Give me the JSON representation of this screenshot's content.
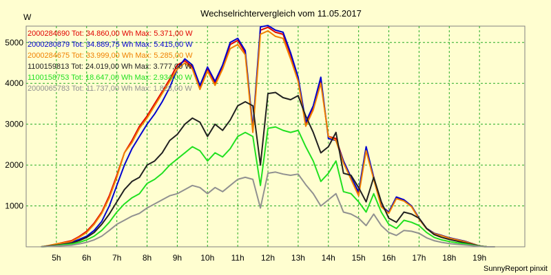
{
  "chart_data": {
    "type": "line",
    "title": "Wechselrichtervergleich vom 11.05.2017",
    "ylabel": "W",
    "xlabel": "",
    "footer": "SunnyReport pinxit",
    "grid": true,
    "legend_position": "top-left",
    "x_unit": "hour",
    "xlim": [
      4.0,
      20.5
    ],
    "ylim": [
      0,
      5400
    ],
    "x_ticks": [
      5,
      6,
      7,
      8,
      9,
      10,
      11,
      12,
      13,
      14,
      15,
      16,
      17,
      18,
      19
    ],
    "x_tick_labels": [
      "5h",
      "6h",
      "7h",
      "8h",
      "9h",
      "10h",
      "11h",
      "12h",
      "13h",
      "14h",
      "15h",
      "16h",
      "17h",
      "18h",
      "19h"
    ],
    "y_ticks": [
      1000,
      2000,
      3000,
      4000,
      5000
    ],
    "y_tick_labels": [
      "1000",
      "2000",
      "3000",
      "4000",
      "5000"
    ],
    "x": [
      4.5,
      4.75,
      5.0,
      5.25,
      5.5,
      5.75,
      6.0,
      6.25,
      6.5,
      6.75,
      7.0,
      7.25,
      7.5,
      7.75,
      8.0,
      8.25,
      8.5,
      8.75,
      9.0,
      9.25,
      9.5,
      9.75,
      10.0,
      10.25,
      10.5,
      10.75,
      11.0,
      11.25,
      11.5,
      11.75,
      12.0,
      12.25,
      12.5,
      12.75,
      13.0,
      13.25,
      13.5,
      13.75,
      14.0,
      14.25,
      14.5,
      14.75,
      15.0,
      15.25,
      15.5,
      15.75,
      16.0,
      16.25,
      16.5,
      16.75,
      17.0,
      17.25,
      17.5,
      17.75,
      18.0,
      18.25,
      18.5,
      18.75,
      19.0,
      19.25,
      19.5
    ],
    "series": [
      {
        "name": "2000284690",
        "label": "2000284690 Tot: 34.860,00 Wh Max: 5.371,00 W",
        "color": "#e00000",
        "values": [
          0,
          30,
          70,
          110,
          150,
          250,
          380,
          580,
          850,
          1250,
          1750,
          2300,
          2600,
          2950,
          3200,
          3500,
          3800,
          4100,
          4450,
          4550,
          4400,
          3900,
          4350,
          4000,
          4400,
          4950,
          5050,
          4750,
          2850,
          5300,
          5371,
          5250,
          5200,
          4700,
          4100,
          3000,
          3400,
          4050,
          2700,
          2650,
          2100,
          1700,
          1300,
          2400,
          1700,
          1000,
          850,
          1200,
          1150,
          1000,
          700,
          450,
          330,
          280,
          220,
          180,
          140,
          80,
          20,
          0,
          0
        ]
      },
      {
        "name": "2000280879",
        "label": "2000280879 Tot: 34.889,75 Wh Max: 5.415,00 W",
        "color": "#0000d0",
        "values": [
          0,
          20,
          50,
          80,
          110,
          180,
          260,
          400,
          620,
          1000,
          1500,
          2000,
          2400,
          2700,
          3000,
          3250,
          3550,
          3900,
          4350,
          4600,
          4450,
          3950,
          4400,
          4050,
          4450,
          5000,
          5100,
          4800,
          2900,
          5380,
          5415,
          5300,
          5250,
          4750,
          4150,
          3050,
          3450,
          4150,
          2650,
          2600,
          2100,
          1700,
          1350,
          2450,
          1700,
          1000,
          850,
          1220,
          1150,
          1000,
          700,
          450,
          330,
          280,
          220,
          180,
          140,
          80,
          20,
          0,
          0
        ]
      },
      {
        "name": "2000284675",
        "label": "2000284675 Tot: 33.999,00 Wh Max: 5.285,00 W",
        "color": "#f08000",
        "values": [
          0,
          30,
          70,
          100,
          130,
          230,
          350,
          550,
          820,
          1200,
          1700,
          2300,
          2550,
          2900,
          3150,
          3450,
          3750,
          4050,
          4350,
          4500,
          4350,
          3850,
          4300,
          3950,
          4350,
          4850,
          4950,
          4700,
          2800,
          5200,
          5285,
          5150,
          5100,
          4600,
          4050,
          2950,
          3350,
          4000,
          2700,
          2600,
          2050,
          1650,
          1250,
          2350,
          1650,
          980,
          820,
          1180,
          1120,
          980,
          680,
          440,
          320,
          270,
          210,
          170,
          130,
          75,
          20,
          0,
          0
        ]
      },
      {
        "name": "1100159813",
        "label": "1100159813 Tot: 24.019,00 Wh Max: 3.777,00 W",
        "color": "#202020",
        "values": [
          0,
          20,
          40,
          60,
          90,
          150,
          230,
          350,
          550,
          800,
          1100,
          1400,
          1600,
          1700,
          2000,
          2100,
          2300,
          2600,
          2750,
          3000,
          3150,
          3050,
          2700,
          3000,
          2850,
          3100,
          3450,
          3550,
          3450,
          2000,
          3750,
          3777,
          3650,
          3600,
          3700,
          3200,
          2800,
          2300,
          2450,
          2800,
          1800,
          1750,
          1450,
          1100,
          1700,
          1100,
          700,
          600,
          850,
          800,
          700,
          450,
          300,
          230,
          180,
          140,
          100,
          60,
          20,
          0,
          0
        ]
      },
      {
        "name": "1100158753",
        "label": "1100158753 Tot: 18.647,00 Wh Max: 2.934,00 W",
        "color": "#20e020",
        "values": [
          0,
          10,
          30,
          50,
          70,
          110,
          170,
          260,
          400,
          600,
          850,
          1050,
          1200,
          1300,
          1550,
          1650,
          1800,
          2000,
          2150,
          2300,
          2450,
          2350,
          2100,
          2300,
          2200,
          2400,
          2700,
          2800,
          2700,
          1500,
          2900,
          2934,
          2850,
          2800,
          2850,
          2450,
          2100,
          1600,
          1800,
          2100,
          1350,
          1300,
          1100,
          850,
          1300,
          850,
          550,
          450,
          650,
          600,
          520,
          350,
          230,
          170,
          130,
          100,
          75,
          45,
          15,
          0,
          0
        ]
      },
      {
        "name": "2000065783",
        "label": "2000065783 Tot: 11.737,00 Wh Max: 1.828,00 W",
        "color": "#909090",
        "values": [
          0,
          10,
          20,
          30,
          40,
          70,
          110,
          170,
          260,
          400,
          550,
          650,
          750,
          820,
          950,
          1050,
          1150,
          1250,
          1300,
          1400,
          1500,
          1450,
          1300,
          1450,
          1350,
          1500,
          1650,
          1700,
          1650,
          950,
          1800,
          1828,
          1780,
          1750,
          1780,
          1520,
          1300,
          1000,
          1150,
          1300,
          850,
          800,
          700,
          520,
          800,
          520,
          350,
          280,
          400,
          380,
          330,
          220,
          150,
          110,
          80,
          60,
          45,
          28,
          10,
          0,
          0
        ]
      }
    ]
  }
}
